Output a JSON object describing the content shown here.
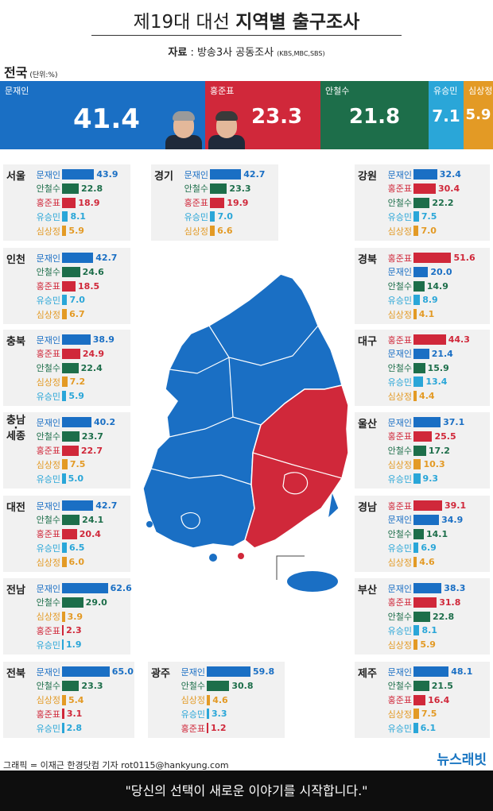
{
  "header": {
    "title_pre": "제19대 대선 ",
    "title_bold": "지역별 출구조사",
    "source_label": "자료",
    "source_text": " : 방송3사 공동조사 ",
    "source_small": "(KBS,MBC,SBS)"
  },
  "national": {
    "label": "전국",
    "unit": " (단위:%)"
  },
  "colors": {
    "moon": "#1a6fc4",
    "hong": "#d0283a",
    "ahn": "#1d6e4a",
    "yoo": "#2aa6d8",
    "sim": "#e39a25",
    "panel": "#f1f1f1"
  },
  "chart_data": {
    "type": "bar",
    "unit": "%",
    "national": [
      {
        "name": "문재인",
        "value": 41.4
      },
      {
        "name": "홍준표",
        "value": 23.3
      },
      {
        "name": "안철수",
        "value": 21.8
      },
      {
        "name": "유승민",
        "value": 7.1
      },
      {
        "name": "심상정",
        "value": 5.9
      }
    ],
    "regions": [
      {
        "name": "서울",
        "rows": [
          [
            "문재인",
            43.9
          ],
          [
            "안철수",
            22.8
          ],
          [
            "홍준표",
            18.9
          ],
          [
            "유승민",
            8.1
          ],
          [
            "심상정",
            5.9
          ]
        ]
      },
      {
        "name": "경기",
        "rows": [
          [
            "문재인",
            42.7
          ],
          [
            "안철수",
            23.3
          ],
          [
            "홍준표",
            19.9
          ],
          [
            "유승민",
            7.0
          ],
          [
            "심상정",
            6.6
          ]
        ]
      },
      {
        "name": "강원",
        "rows": [
          [
            "문재인",
            32.4
          ],
          [
            "홍준표",
            30.4
          ],
          [
            "안철수",
            22.2
          ],
          [
            "유승민",
            7.5
          ],
          [
            "심상정",
            7.0
          ]
        ]
      },
      {
        "name": "인천",
        "rows": [
          [
            "문재인",
            42.7
          ],
          [
            "안철수",
            24.6
          ],
          [
            "홍준표",
            18.5
          ],
          [
            "유승민",
            7.0
          ],
          [
            "심상정",
            6.7
          ]
        ]
      },
      {
        "name": "경북",
        "rows": [
          [
            "홍준표",
            51.6
          ],
          [
            "문재인",
            20.0
          ],
          [
            "안철수",
            14.9
          ],
          [
            "유승민",
            8.9
          ],
          [
            "심상정",
            4.1
          ]
        ]
      },
      {
        "name": "충북",
        "rows": [
          [
            "문재인",
            38.9
          ],
          [
            "홍준표",
            24.9
          ],
          [
            "안철수",
            22.4
          ],
          [
            "심상정",
            7.2
          ],
          [
            "유승민",
            5.9
          ]
        ]
      },
      {
        "name": "대구",
        "rows": [
          [
            "홍준표",
            44.3
          ],
          [
            "문재인",
            21.4
          ],
          [
            "안철수",
            15.9
          ],
          [
            "유승민",
            13.4
          ],
          [
            "심상정",
            4.4
          ]
        ]
      },
      {
        "name": "충남·세종",
        "rows": [
          [
            "문재인",
            40.2
          ],
          [
            "안철수",
            23.7
          ],
          [
            "홍준표",
            22.7
          ],
          [
            "심상정",
            7.5
          ],
          [
            "유승민",
            5.0
          ]
        ]
      },
      {
        "name": "울산",
        "rows": [
          [
            "문재인",
            37.1
          ],
          [
            "홍준표",
            25.5
          ],
          [
            "안철수",
            17.2
          ],
          [
            "심상정",
            10.3
          ],
          [
            "유승민",
            9.3
          ]
        ]
      },
      {
        "name": "대전",
        "rows": [
          [
            "문재인",
            42.7
          ],
          [
            "안철수",
            24.1
          ],
          [
            "홍준표",
            20.4
          ],
          [
            "유승민",
            6.5
          ],
          [
            "심상정",
            6.0
          ]
        ]
      },
      {
        "name": "경남",
        "rows": [
          [
            "홍준표",
            39.1
          ],
          [
            "문재인",
            34.9
          ],
          [
            "안철수",
            14.1
          ],
          [
            "유승민",
            6.9
          ],
          [
            "심상정",
            4.6
          ]
        ]
      },
      {
        "name": "전남",
        "rows": [
          [
            "문재인",
            62.6
          ],
          [
            "안철수",
            29.0
          ],
          [
            "심상정",
            3.9
          ],
          [
            "홍준표",
            2.3
          ],
          [
            "유승민",
            1.9
          ]
        ]
      },
      {
        "name": "부산",
        "rows": [
          [
            "문재인",
            38.3
          ],
          [
            "홍준표",
            31.8
          ],
          [
            "안철수",
            22.8
          ],
          [
            "유승민",
            8.1
          ],
          [
            "심상정",
            5.9
          ]
        ]
      },
      {
        "name": "전북",
        "rows": [
          [
            "문재인",
            65.0
          ],
          [
            "안철수",
            23.3
          ],
          [
            "심상정",
            5.4
          ],
          [
            "홍준표",
            3.1
          ],
          [
            "유승민",
            2.8
          ]
        ]
      },
      {
        "name": "광주",
        "rows": [
          [
            "문재인",
            59.8
          ],
          [
            "안철수",
            30.8
          ],
          [
            "심상정",
            4.6
          ],
          [
            "유승민",
            3.3
          ],
          [
            "홍준표",
            1.2
          ]
        ]
      },
      {
        "name": "제주",
        "rows": [
          [
            "문재인",
            48.1
          ],
          [
            "안철수",
            21.5
          ],
          [
            "홍준표",
            16.4
          ],
          [
            "심상정",
            7.5
          ],
          [
            "유승민",
            6.1
          ]
        ]
      }
    ]
  },
  "footer": {
    "credit": "그래픽 = 이재근 한경닷컴 기자 rot0115@hankyung.com",
    "brand": "뉴스래빗",
    "slogan": "\"당신의 선택이 새로운 이야기를 시작합니다.\""
  }
}
